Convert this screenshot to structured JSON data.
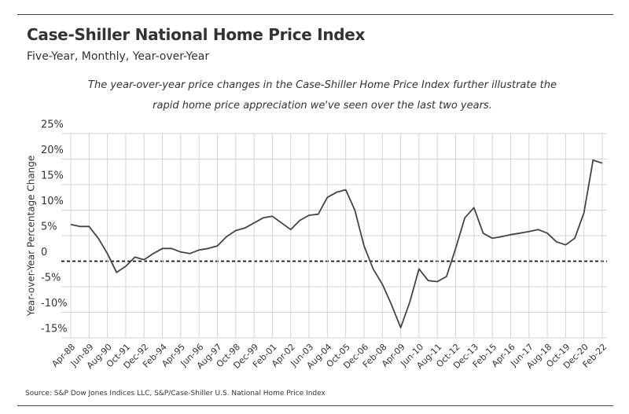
{
  "chart_data": {
    "type": "line",
    "title": "Case-Shiller National Home Price Index",
    "subtitle": "Five-Year, Monthly, Year-over-Year",
    "annotation": "The year-over-year price changes in the Case-Shiller Home Price Index further illustrate the rapid home price appreciation we've seen over the last two years.",
    "y_label": "Year-over-Year Percentage Change",
    "source": "Source:  S&P Dow Jones Indices LLC, S&P/Case-Shiller U.S. National Home Price Index",
    "categories": [
      "Apr-88",
      null,
      "Jun-89",
      null,
      "Aug-90",
      null,
      "Oct-91",
      null,
      "Dec-92",
      null,
      "Feb-94",
      null,
      "Apr-95",
      null,
      "Jun-96",
      null,
      "Aug-97",
      null,
      "Oct-98",
      null,
      "Dec-99",
      null,
      "Feb-01",
      null,
      "Apr-02",
      null,
      "Jun-03",
      null,
      "Aug-04",
      null,
      "Oct-05",
      null,
      "Dec-06",
      null,
      "Feb-08",
      null,
      "Apr-09",
      null,
      "Jun-10",
      null,
      "Aug-11",
      null,
      "Oct-12",
      null,
      "Dec-13",
      null,
      "Feb-15",
      null,
      "Apr-16",
      null,
      "Jun-17",
      null,
      "Aug-18",
      null,
      "Oct-19",
      null,
      "Dec-20",
      null,
      "Feb-22"
    ],
    "values": [
      7.2,
      6.8,
      6.8,
      4.5,
      1.5,
      -2.2,
      -1.0,
      0.8,
      0.3,
      1.5,
      2.5,
      2.5,
      1.8,
      1.5,
      2.2,
      2.5,
      3.0,
      4.8,
      6.0,
      6.5,
      7.5,
      8.5,
      8.8,
      7.5,
      6.2,
      8.0,
      9.0,
      9.2,
      12.5,
      13.5,
      14.0,
      10.0,
      3.0,
      -1.5,
      -4.5,
      -8.5,
      -13.0,
      -8.0,
      -1.5,
      -3.8,
      -4.0,
      -3.0,
      2.5,
      8.5,
      10.5,
      5.5,
      4.5,
      4.8,
      5.2,
      5.5,
      5.8,
      6.2,
      5.5,
      3.8,
      3.2,
      4.5,
      9.5,
      19.8,
      19.2
    ],
    "color": "#444444",
    "ylim": [
      -15,
      25
    ],
    "yticks": [
      {
        "value": 25,
        "label": "25%"
      },
      {
        "value": 20,
        "label": "20%"
      },
      {
        "value": 15,
        "label": "15%"
      },
      {
        "value": 10,
        "label": "10%"
      },
      {
        "value": 5,
        "label": "5%"
      },
      0,
      {
        "value": -5,
        "label": "-5%"
      },
      {
        "value": -10,
        "label": "-10%"
      },
      {
        "value": -15,
        "label": "-15%"
      }
    ],
    "grid": true
  }
}
